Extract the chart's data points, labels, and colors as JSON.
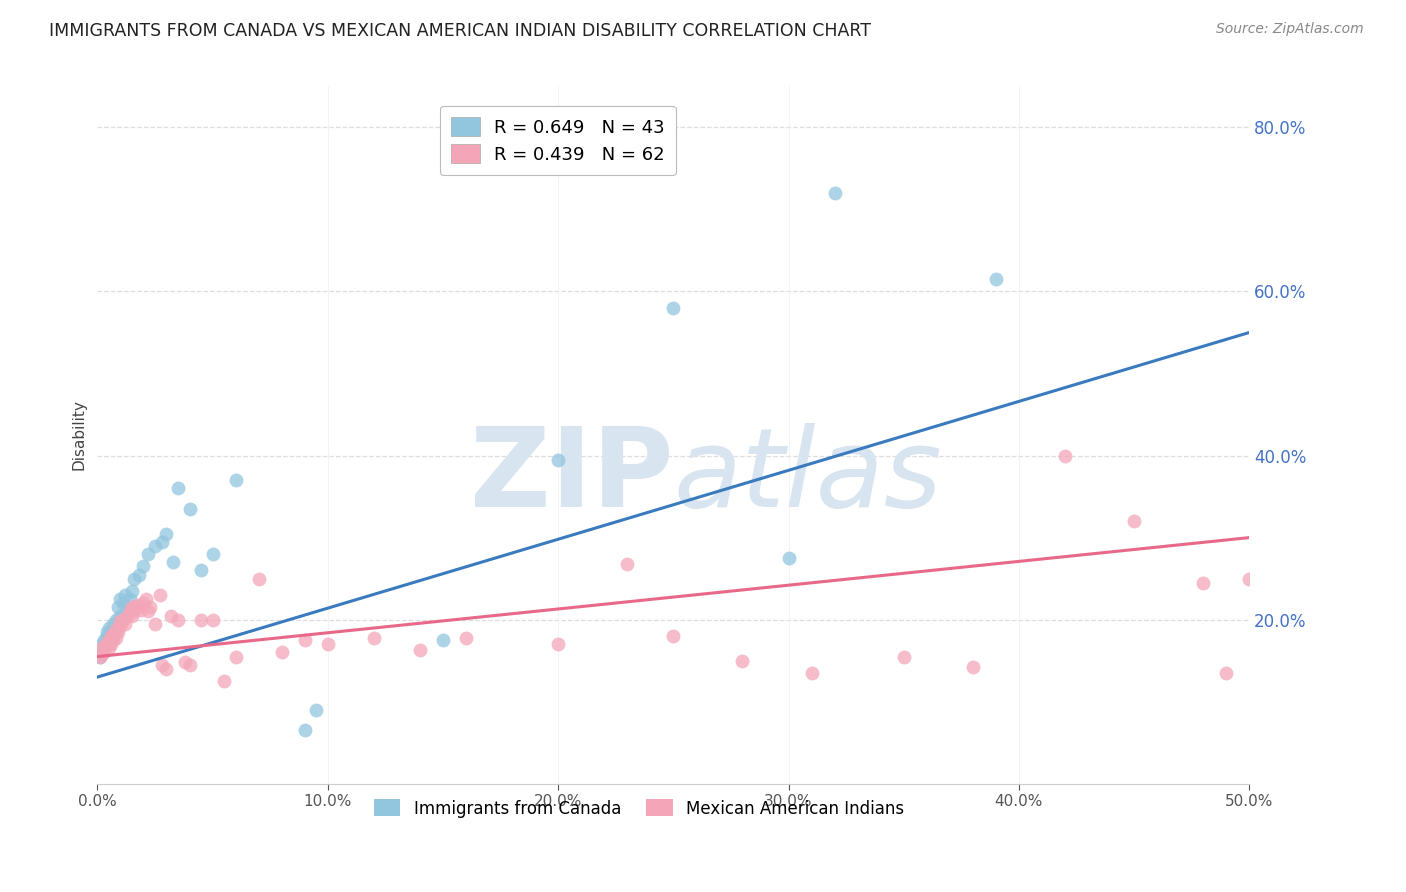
{
  "title": "IMMIGRANTS FROM CANADA VS MEXICAN AMERICAN INDIAN DISABILITY CORRELATION CHART",
  "source_text": "Source: ZipAtlas.com",
  "ylabel": "Disability",
  "xlim": [
    0.0,
    0.5
  ],
  "ylim": [
    0.0,
    0.85
  ],
  "xtick_positions": [
    0.0,
    0.1,
    0.2,
    0.3,
    0.4,
    0.5
  ],
  "xtick_labels": [
    "0.0%",
    "10.0%",
    "20.0%",
    "30.0%",
    "40.0%",
    "50.0%"
  ],
  "ytick_positions": [
    0.2,
    0.4,
    0.6,
    0.8
  ],
  "ytick_labels": [
    "20.0%",
    "40.0%",
    "60.0%",
    "80.0%"
  ],
  "blue_R": 0.649,
  "blue_N": 43,
  "pink_R": 0.439,
  "pink_N": 62,
  "blue_color": "#92c5de",
  "pink_color": "#f4a6b8",
  "blue_line_color": "#3a7bbf",
  "pink_line_color": "#e8688a",
  "watermark_color": "#d8e4f0",
  "legend_label_blue": "Immigrants from Canada",
  "legend_label_pink": "Mexican American Indians",
  "blue_line_x0": 0.0,
  "blue_line_y0": 0.13,
  "blue_line_x1": 0.5,
  "blue_line_y1": 0.55,
  "pink_line_x0": 0.0,
  "pink_line_y0": 0.155,
  "pink_line_x1": 0.5,
  "pink_line_y1": 0.3,
  "blue_x": [
    0.001,
    0.002,
    0.002,
    0.003,
    0.003,
    0.004,
    0.004,
    0.005,
    0.005,
    0.006,
    0.006,
    0.007,
    0.008,
    0.008,
    0.009,
    0.01,
    0.01,
    0.011,
    0.012,
    0.013,
    0.014,
    0.015,
    0.016,
    0.018,
    0.02,
    0.022,
    0.025,
    0.028,
    0.03,
    0.033,
    0.035,
    0.04,
    0.045,
    0.05,
    0.06,
    0.09,
    0.095,
    0.15,
    0.2,
    0.25,
    0.3,
    0.32,
    0.39
  ],
  "blue_y": [
    0.155,
    0.16,
    0.17,
    0.165,
    0.175,
    0.18,
    0.185,
    0.17,
    0.19,
    0.175,
    0.185,
    0.195,
    0.2,
    0.185,
    0.215,
    0.205,
    0.225,
    0.22,
    0.23,
    0.21,
    0.225,
    0.235,
    0.25,
    0.255,
    0.265,
    0.28,
    0.29,
    0.295,
    0.305,
    0.27,
    0.36,
    0.335,
    0.26,
    0.28,
    0.37,
    0.065,
    0.09,
    0.175,
    0.395,
    0.58,
    0.275,
    0.72,
    0.615
  ],
  "pink_x": [
    0.001,
    0.002,
    0.002,
    0.003,
    0.003,
    0.004,
    0.005,
    0.005,
    0.006,
    0.006,
    0.007,
    0.007,
    0.008,
    0.008,
    0.009,
    0.01,
    0.01,
    0.011,
    0.012,
    0.013,
    0.014,
    0.015,
    0.015,
    0.016,
    0.017,
    0.018,
    0.019,
    0.02,
    0.021,
    0.022,
    0.023,
    0.025,
    0.027,
    0.028,
    0.03,
    0.032,
    0.035,
    0.038,
    0.04,
    0.045,
    0.05,
    0.055,
    0.06,
    0.07,
    0.08,
    0.09,
    0.1,
    0.12,
    0.14,
    0.16,
    0.2,
    0.23,
    0.25,
    0.28,
    0.31,
    0.35,
    0.38,
    0.42,
    0.45,
    0.48,
    0.49,
    0.5
  ],
  "pink_y": [
    0.155,
    0.158,
    0.165,
    0.16,
    0.168,
    0.172,
    0.165,
    0.175,
    0.17,
    0.18,
    0.175,
    0.182,
    0.178,
    0.188,
    0.185,
    0.192,
    0.198,
    0.2,
    0.195,
    0.205,
    0.21,
    0.205,
    0.215,
    0.21,
    0.218,
    0.215,
    0.212,
    0.22,
    0.225,
    0.21,
    0.215,
    0.195,
    0.23,
    0.145,
    0.14,
    0.205,
    0.2,
    0.148,
    0.145,
    0.2,
    0.2,
    0.125,
    0.155,
    0.25,
    0.16,
    0.175,
    0.17,
    0.178,
    0.163,
    0.178,
    0.17,
    0.268,
    0.18,
    0.15,
    0.135,
    0.155,
    0.142,
    0.4,
    0.32,
    0.245,
    0.135,
    0.25
  ]
}
